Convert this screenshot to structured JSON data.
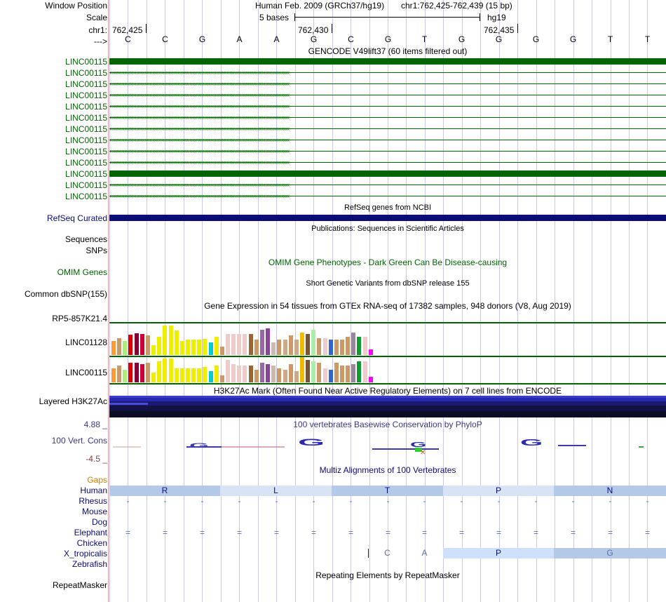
{
  "header": {
    "window_position_label": "Window Position",
    "scale_label": "Scale",
    "chrom_label": "chr1:",
    "strand_label": "--->",
    "assembly": "Human Feb. 2009 (GRCh37/hg19)",
    "position": "chr1:762,425-762,439 (15 bp)",
    "scale_text": "5 bases",
    "db": "hg19",
    "ticks": [
      "762,425",
      "762,430",
      "762,435"
    ],
    "bases": [
      "C",
      "C",
      "G",
      "A",
      "A",
      "G",
      "C",
      "G",
      "T",
      "G",
      "G",
      "G",
      "G",
      "T",
      "T"
    ]
  },
  "gencode": {
    "title": "GENCODE V49lift37 (60 items filtered out)",
    "genes": [
      "LINC00115",
      "LINC00115",
      "LINC00115",
      "LINC00115",
      "LINC00115",
      "LINC00115",
      "LINC00115",
      "LINC00115",
      "LINC00115",
      "LINC00115",
      "LINC00115",
      "LINC00115",
      "LINC00115"
    ],
    "color": "#006400"
  },
  "refseq": {
    "title": "RefSeq genes from NCBI",
    "label": "RefSeq Curated",
    "color": "#0c0c78"
  },
  "publications": {
    "title": "Publications: Sequences in Scientific Articles",
    "label": "Sequences"
  },
  "snps_label": "SNPs",
  "omim": {
    "title": "OMIM Gene Phenotypes - Dark Green Can Be Disease-causing",
    "label": "OMIM Genes"
  },
  "dbsnp": {
    "title": "Short Genetic Variants from dbSNP release 155",
    "label": "Common dbSNP(155)"
  },
  "gtex": {
    "title": "Gene Expression in 54 tissues from GTEx RNA-seq of 17382 samples, 948 donors (V8, Aug 2019)",
    "genes": [
      "RP5-857K21.4",
      "LINC01128",
      "LINC00115"
    ],
    "colors": [
      "#ff9933",
      "#cc9966",
      "#aaee77",
      "#dd0000",
      "#880033",
      "#cc0033",
      "#cc9966",
      "#eeee00",
      "#eeee00",
      "#eeee00",
      "#eeee00",
      "#eeee00",
      "#eeee00",
      "#eeee00",
      "#eeee00",
      "#eeee00",
      "#eeee00",
      "#00cccc",
      "#eeee00",
      "#cc9966",
      "#eecccc",
      "#eecccc",
      "#eecccc",
      "#eecccc",
      "#996633",
      "#cc9966",
      "#9966aa",
      "#884499",
      "#ccbbaa",
      "#cc9966",
      "#ccaa88",
      "#cc9966",
      "#ccaa88",
      "#eebb00",
      "#775533",
      "#aaeeaa",
      "#cc9966",
      "#eecccc",
      "#3366cc",
      "#cc9966",
      "#cc9966",
      "#cc9966",
      "#998899",
      "#119933",
      "#eecccc",
      "#ff00ff"
    ],
    "values_linc01128": [
      20,
      24,
      20,
      29,
      31,
      30,
      28,
      14,
      26,
      42,
      42,
      35,
      20,
      22,
      22,
      22,
      23,
      18,
      26,
      12,
      30,
      30,
      30,
      30,
      30,
      22,
      36,
      38,
      18,
      22,
      22,
      28,
      22,
      32,
      30,
      36,
      24,
      24,
      22,
      22,
      22,
      26,
      32,
      26,
      26,
      8
    ],
    "values_linc00115": [
      20,
      24,
      18,
      28,
      28,
      26,
      28,
      14,
      30,
      34,
      34,
      20,
      20,
      20,
      20,
      20,
      22,
      16,
      24,
      10,
      32,
      26,
      24,
      24,
      24,
      18,
      28,
      26,
      24,
      20,
      18,
      26,
      16,
      36,
      32,
      30,
      28,
      20,
      18,
      28,
      24,
      24,
      26,
      30,
      30,
      8
    ]
  },
  "h3k27ac": {
    "title": "H3K27Ac Mark (Often Found Near Active Regulatory Elements) on 7 cell lines from ENCODE",
    "label": "Layered H3K27Ac"
  },
  "phylop": {
    "title": "100 vertebrates Basewise Conservation by PhyloP",
    "label": "100 Vert. Cons",
    "max_label": "4.88 _",
    "min_label": "-4.5 _",
    "logo_letter": "G"
  },
  "multiz": {
    "title": "Multiz Alignments of 100 Vertebrates",
    "gaps_label": "Gaps",
    "species": [
      "Human",
      "Rhesus",
      "Mouse",
      "Dog",
      "Elephant",
      "Chicken",
      "X_tropicalis",
      "Zebrafish"
    ],
    "human_aa": [
      "R",
      "L",
      "T",
      "P",
      "N"
    ],
    "dash": "-",
    "eq": "=",
    "xtrop_bases": [
      "C",
      "A"
    ],
    "xtrop_aa": [
      "P",
      "G"
    ]
  },
  "repeatmasker": {
    "title": "Repeating Elements by RepeatMasker",
    "label": "RepeatMasker"
  }
}
